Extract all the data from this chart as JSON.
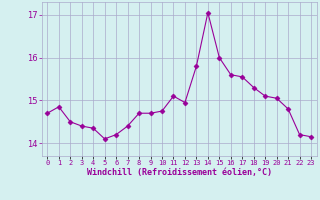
{
  "hours": [
    0,
    1,
    2,
    3,
    4,
    5,
    6,
    7,
    8,
    9,
    10,
    11,
    12,
    13,
    14,
    15,
    16,
    17,
    18,
    19,
    20,
    21,
    22,
    23
  ],
  "values": [
    14.7,
    14.85,
    14.5,
    14.4,
    14.35,
    14.1,
    14.2,
    14.4,
    14.7,
    14.7,
    14.75,
    15.1,
    14.95,
    15.8,
    17.05,
    16.0,
    15.6,
    15.55,
    15.3,
    15.1,
    15.05,
    14.8,
    14.2,
    14.15
  ],
  "line_color": "#990099",
  "marker": "D",
  "marker_size": 2.5,
  "bg_color": "#d5f0f0",
  "grid_color": "#aaaacc",
  "xlabel": "Windchill (Refroidissement éolien,°C)",
  "xlabel_color": "#990099",
  "tick_color": "#990099",
  "ylim": [
    13.7,
    17.3
  ],
  "xlim": [
    -0.5,
    23.5
  ],
  "yticks": [
    14,
    15,
    16,
    17
  ],
  "xtick_labels": [
    "0",
    "1",
    "2",
    "3",
    "4",
    "5",
    "6",
    "7",
    "8",
    "9",
    "10",
    "11",
    "12",
    "13",
    "14",
    "15",
    "16",
    "17",
    "18",
    "19",
    "20",
    "21",
    "22",
    "23"
  ]
}
